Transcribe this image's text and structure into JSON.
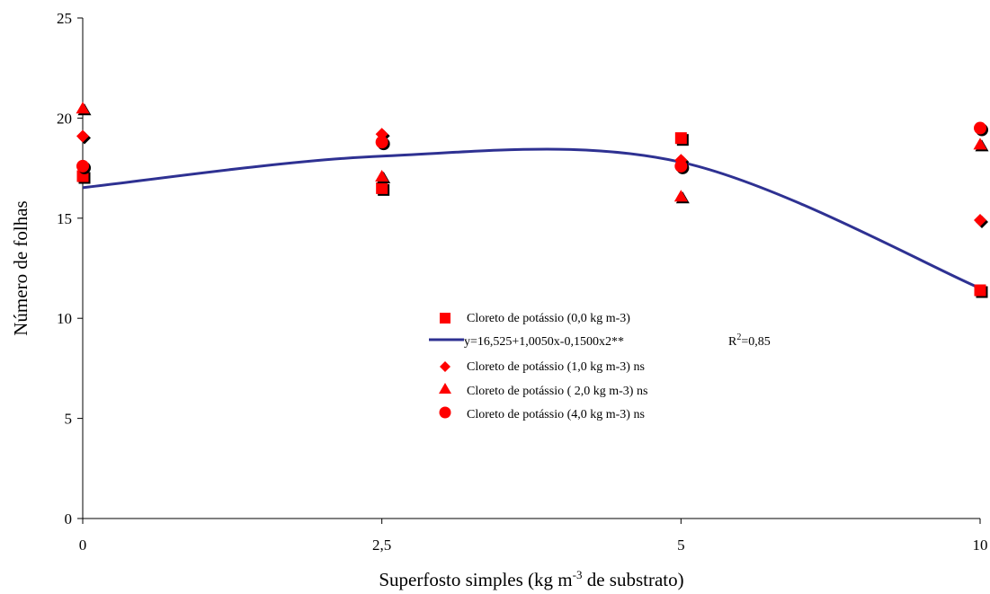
{
  "chart_data": {
    "type": "scatter",
    "xlabel": "Superfosto simples (kg m-3 de substrato)",
    "xlabel_parts": {
      "pre": "Superfosto simples (kg m",
      "sup": "-3",
      "post": " de substrato)"
    },
    "ylabel": "Número de folhas",
    "categories": [
      "0",
      "2,5",
      "5",
      "10"
    ],
    "y_ticks": [
      "0",
      "5",
      "10",
      "15",
      "20",
      "25"
    ],
    "ylim": [
      0,
      25
    ],
    "grid": false,
    "legend_position": "center",
    "series": [
      {
        "name": "Cloreto de potássio (0,0 kg m-3)",
        "marker": "square",
        "color": "#ff0000",
        "values": [
          17.1,
          16.5,
          19.0,
          11.4
        ]
      },
      {
        "name": "Cloreto de potássio (1,0 kg m-3) ns",
        "marker": "diamond",
        "color": "#ff0000",
        "values": [
          19.1,
          19.2,
          17.9,
          14.9
        ]
      },
      {
        "name": "Cloreto de potássio ( 2,0 kg m-3) ns",
        "marker": "triangle",
        "color": "#ff0000",
        "values": [
          20.5,
          17.1,
          16.1,
          18.7
        ]
      },
      {
        "name": "Cloreto de potássio (4,0 kg m-3) ns",
        "marker": "circle",
        "color": "#ff0000",
        "values": [
          17.6,
          18.8,
          17.6,
          19.5
        ]
      }
    ],
    "fit_line": {
      "label": "y=16,525+1,0050x-0,1500x2**",
      "r2_label": {
        "pre": "R",
        "sup": "2",
        "post": "=0,85"
      },
      "color": "#2e3192",
      "values": [
        16.525,
        18.1,
        17.8,
        11.5
      ]
    }
  }
}
